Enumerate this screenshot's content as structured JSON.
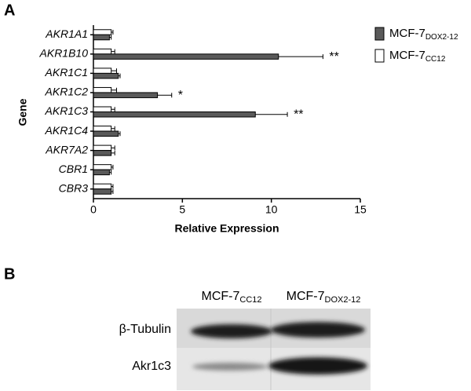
{
  "panel_labels": [
    "A",
    "B"
  ],
  "chart_data": {
    "type": "hbar",
    "x_label": "Relative Expression",
    "y_label": "Gene",
    "categories": [
      "AKR1A1",
      "AKR1B10",
      "AKR1C1",
      "AKR1C2",
      "AKR1C3",
      "AKR1C4",
      "AKR7A2",
      "CBR1",
      "CBR3"
    ],
    "series": [
      {
        "name": "MCF-7",
        "subscript": "DOX2-12",
        "color": "#5a5a5a",
        "values": [
          0.9,
          10.4,
          1.4,
          3.6,
          9.1,
          1.4,
          1.0,
          0.9,
          1.0
        ],
        "errors": [
          0.1,
          2.5,
          0.1,
          0.8,
          1.8,
          0.1,
          0.2,
          0.1,
          0.1
        ]
      },
      {
        "name": "MCF-7",
        "subscript": "CC12",
        "color": "#ffffff",
        "values": [
          1.0,
          1.0,
          1.0,
          1.0,
          1.0,
          1.0,
          1.0,
          1.0,
          1.0
        ],
        "errors": [
          0.1,
          0.2,
          0.3,
          0.3,
          0.2,
          0.2,
          0.2,
          0.1,
          0.1
        ]
      }
    ],
    "annotations": [
      null,
      "**",
      null,
      "*",
      "**",
      null,
      null,
      null,
      null
    ],
    "xlim": [
      0,
      15
    ],
    "xticks": [
      0,
      5,
      10,
      15
    ],
    "legend": "right"
  },
  "blot": {
    "columns": [
      {
        "name": "MCF-7",
        "subscript": "CC12"
      },
      {
        "name": "MCF-7",
        "subscript": "DOX2-12"
      }
    ],
    "rows": [
      "β-Tubulin",
      "Akr1c3"
    ]
  }
}
